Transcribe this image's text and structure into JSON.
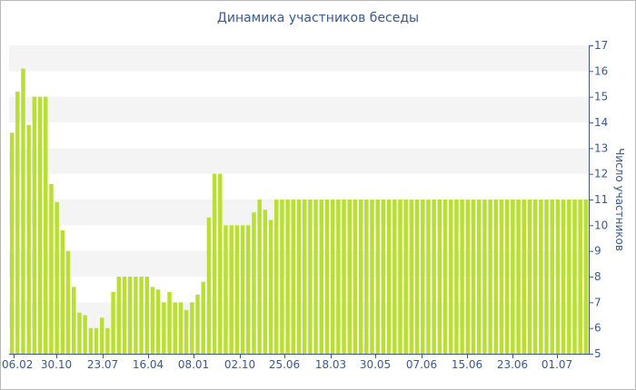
{
  "chart_data": {
    "type": "bar",
    "title": "Динамика участников беседы",
    "ylabel": "Число участников",
    "ylim": [
      5,
      17
    ],
    "y_ticks": [
      5,
      6,
      7,
      8,
      9,
      10,
      11,
      12,
      13,
      14,
      15,
      16,
      17
    ],
    "x_tick_labels": [
      "06.02",
      "30.10",
      "23.07",
      "16.04",
      "08.01",
      "02.10",
      "25.06",
      "18.03",
      "30.05",
      "07.06",
      "15.06",
      "23.06",
      "01.07"
    ],
    "grid": "horizontal bands",
    "bar_color": "#b9e030",
    "values": [
      13.6,
      15.2,
      16.1,
      13.9,
      15.0,
      15.0,
      15.0,
      11.6,
      10.9,
      9.8,
      9.0,
      7.6,
      6.6,
      6.5,
      6.0,
      6.0,
      6.4,
      6.0,
      7.4,
      8.0,
      8.0,
      8.0,
      8.0,
      8.0,
      8.0,
      7.6,
      7.5,
      7.0,
      7.4,
      7.0,
      7.0,
      6.7,
      7.0,
      7.3,
      7.8,
      10.3,
      12.0,
      12.0,
      10.0,
      10.0,
      10.0,
      10.0,
      10.0,
      10.5,
      11.0,
      10.6,
      10.2,
      11.0,
      11.0,
      11.0,
      11.0,
      11.0,
      11.0,
      11.0,
      11.0,
      11.0,
      11.0,
      11.0,
      11.0,
      11.0,
      11.0,
      11.0,
      11.0,
      11.0,
      11.0,
      11.0,
      11.0,
      11.0,
      11.0,
      11.0,
      11.0,
      11.0,
      11.0,
      11.0,
      11.0,
      11.0,
      11.0,
      11.0,
      11.0,
      11.0,
      11.0,
      11.0,
      11.0,
      11.0,
      11.0,
      11.0,
      11.0,
      11.0,
      11.0,
      11.0,
      11.0,
      11.0,
      11.0,
      11.0,
      11.0,
      11.0,
      11.0,
      11.0,
      11.0,
      11.0,
      11.0,
      11.0,
      11.0
    ]
  }
}
